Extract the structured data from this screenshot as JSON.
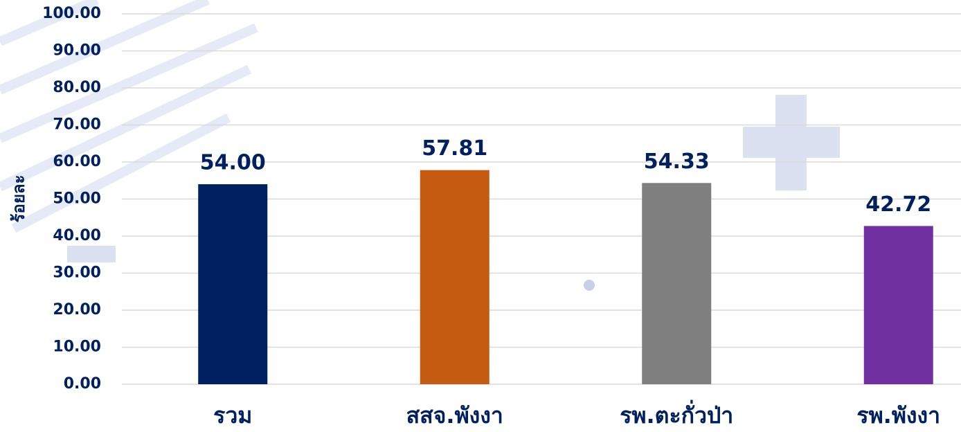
{
  "chart_data": {
    "type": "bar",
    "y_label": "ร้อยละ",
    "categories": [
      "รวม",
      "สสจ.พังงา",
      "รพ.ตะกั่วป่า",
      "รพ.พังงา"
    ],
    "values": [
      54.0,
      57.81,
      54.33,
      42.72
    ],
    "value_labels": [
      "54.00",
      "57.81",
      "54.33",
      "42.72"
    ],
    "colors": [
      "#002060",
      "#c55a11",
      "#7f7f7f",
      "#7030a0"
    ],
    "ylim": [
      0,
      100
    ],
    "yticks": [
      {
        "value": 0,
        "label": "0.00"
      },
      {
        "value": 10,
        "label": "10.00"
      },
      {
        "value": 20,
        "label": "20.00"
      },
      {
        "value": 30,
        "label": "30.00"
      },
      {
        "value": 40,
        "label": "40.00"
      },
      {
        "value": 50,
        "label": "50.00"
      },
      {
        "value": 60,
        "label": "60.00"
      },
      {
        "value": 70,
        "label": "70.00"
      },
      {
        "value": 80,
        "label": "80.00"
      },
      {
        "value": 90,
        "label": "90.00"
      },
      {
        "value": 100,
        "label": "100.00"
      }
    ],
    "grid": true
  }
}
